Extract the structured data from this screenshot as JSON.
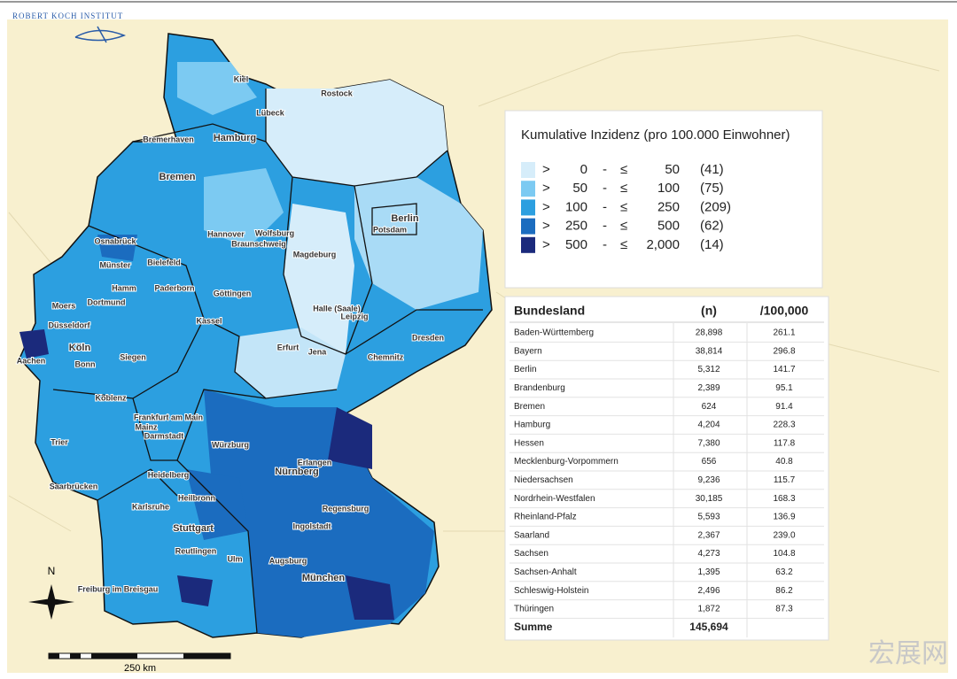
{
  "header": {
    "institute": "ROBERT KOCH INSTITUT"
  },
  "legend": {
    "title": "Kumulative Inzidenz (pro 100.000 Einwohner)",
    "classes": [
      {
        "gt": ">",
        "lower": "0",
        "dash": "-",
        "le": "≤",
        "upper": "50",
        "count": "(41)",
        "color": "#d6edfa"
      },
      {
        "gt": ">",
        "lower": "50",
        "dash": "-",
        "le": "≤",
        "upper": "100",
        "count": "(75)",
        "color": "#7ccaf2"
      },
      {
        "gt": ">",
        "lower": "100",
        "dash": "-",
        "le": "≤",
        "upper": "250",
        "count": "(209)",
        "color": "#2c9fe0"
      },
      {
        "gt": ">",
        "lower": "250",
        "dash": "-",
        "le": "≤",
        "upper": "500",
        "count": "(62)",
        "color": "#1b6cbf"
      },
      {
        "gt": ">",
        "lower": "500",
        "dash": "-",
        "le": "≤",
        "upper": "2,000",
        "count": "(14)",
        "color": "#1b2a7c"
      }
    ]
  },
  "table": {
    "headers": [
      "Bundesland",
      "(n)",
      "/100,000"
    ],
    "rows": [
      [
        "Baden-Württemberg",
        "28,898",
        "261.1"
      ],
      [
        "Bayern",
        "38,814",
        "296.8"
      ],
      [
        "Berlin",
        "5,312",
        "141.7"
      ],
      [
        "Brandenburg",
        "2,389",
        "95.1"
      ],
      [
        "Bremen",
        "624",
        "91.4"
      ],
      [
        "Hamburg",
        "4,204",
        "228.3"
      ],
      [
        "Hessen",
        "7,380",
        "117.8"
      ],
      [
        "Mecklenburg-Vorpommern",
        "656",
        "40.8"
      ],
      [
        "Niedersachsen",
        "9,236",
        "115.7"
      ],
      [
        "Nordrhein-Westfalen",
        "30,185",
        "168.3"
      ],
      [
        "Rheinland-Pfalz",
        "5,593",
        "136.9"
      ],
      [
        "Saarland",
        "2,367",
        "239.0"
      ],
      [
        "Sachsen",
        "4,273",
        "104.8"
      ],
      [
        "Sachsen-Anhalt",
        "1,395",
        "63.2"
      ],
      [
        "Schleswig-Holstein",
        "2,496",
        "86.2"
      ],
      [
        "Thüringen",
        "1,872",
        "87.3"
      ]
    ],
    "total": [
      "Summe",
      "145,694"
    ]
  },
  "map": {
    "cities": [
      "Kiel",
      "Rostock",
      "Lübeck",
      "Bremerhaven",
      "Hamburg",
      "Bremen",
      "Berlin",
      "Potsdam",
      "Osnabrück",
      "Hannover",
      "Wolfsburg",
      "Braunschweig",
      "Magdeburg",
      "Münster",
      "Bielefeld",
      "Hamm",
      "Paderborn",
      "Moers",
      "Dortmund",
      "Düsseldorf",
      "Köln",
      "Aachen",
      "Bonn",
      "Siegen",
      "Göttingen",
      "Kassel",
      "Halle (Saale)",
      "Leipzig",
      "Dresden",
      "Erfurt",
      "Jena",
      "Chemnitz",
      "Koblenz",
      "Frankfurt am Main",
      "Mainz",
      "Darmstadt",
      "Würzburg",
      "Trier",
      "Erlangen",
      "Nürnberg",
      "Saarbrücken",
      "Heidelberg",
      "Heilbronn",
      "Regensburg",
      "Karlsruhe",
      "Stuttgart",
      "Ingolstadt",
      "Reutlingen",
      "Ulm",
      "Augsburg",
      "München",
      "Freiburg im Breisgau"
    ],
    "north": "N",
    "scale": "250 km"
  },
  "watermark": "宏展网"
}
